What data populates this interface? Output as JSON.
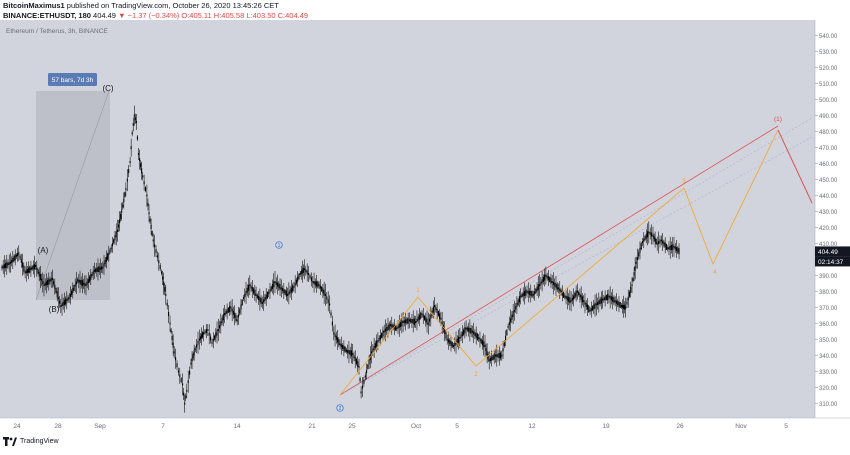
{
  "header": {
    "author": "BitcoinMaximus1",
    "published_text": "published on TradingView.com, October 26, 2020 13:45:26 CET",
    "symbol_line": "BINANCE:ETHUSDT, 180",
    "last": "404.49",
    "change": "▼ −1.37 (−0.34%)",
    "o": "O:405.11",
    "h": "H:405.58",
    "l": "L:403.50",
    "c": "C:404.49"
  },
  "chart_data": {
    "type": "candlestick",
    "title": "Ethereum / Tetherus, 3h, BINANCE",
    "ylim": [
      300,
      550
    ],
    "y_ticks": [
      310,
      320,
      330,
      340,
      350,
      360,
      370,
      380,
      390,
      400,
      410,
      420,
      430,
      440,
      450,
      460,
      470,
      480,
      490,
      500,
      510,
      520,
      530,
      540,
      550
    ],
    "y_tick_labels": [
      "310.00",
      "320.00",
      "330.00",
      "340.00",
      "350.00",
      "360.00",
      "370.00",
      "380.00",
      "390.00",
      "",
      "410.00",
      "420.00",
      "430.00",
      "440.00",
      "450.00",
      "460.00",
      "470.00",
      "480.00",
      "490.00",
      "500.00",
      "510.00",
      "520.00",
      "530.00",
      "540.00",
      "550.00"
    ],
    "x_tick_labels": [
      "24",
      "28",
      "Sep",
      "7",
      "14",
      "21",
      "25",
      "Oct",
      "5",
      "12",
      "19",
      "26",
      "Nov",
      "5"
    ],
    "last_price_label": "404.49",
    "countdown_label": "02:14:37",
    "price_path": [
      [
        0,
        395
      ],
      [
        4,
        398
      ],
      [
        8,
        404
      ],
      [
        11,
        392
      ],
      [
        16,
        396
      ],
      [
        20,
        384
      ],
      [
        24,
        388
      ],
      [
        28,
        371
      ],
      [
        32,
        376
      ],
      [
        36,
        387
      ],
      [
        40,
        384
      ],
      [
        44,
        393
      ],
      [
        48,
        395
      ],
      [
        52,
        407
      ],
      [
        55,
        418
      ],
      [
        57,
        430
      ],
      [
        59,
        444
      ],
      [
        61,
        461
      ],
      [
        62,
        479
      ],
      [
        63,
        490
      ],
      [
        64,
        486
      ],
      [
        65,
        466
      ],
      [
        67,
        452
      ],
      [
        69,
        440
      ],
      [
        70,
        429
      ],
      [
        72,
        412
      ],
      [
        74,
        402
      ],
      [
        76,
        392
      ],
      [
        78,
        378
      ],
      [
        80,
        360
      ],
      [
        82,
        342
      ],
      [
        84,
        330
      ],
      [
        86,
        322
      ],
      [
        87,
        310
      ],
      [
        88,
        318
      ],
      [
        90,
        335
      ],
      [
        92,
        344
      ],
      [
        94,
        350
      ],
      [
        96,
        354
      ],
      [
        98,
        356
      ],
      [
        100,
        348
      ],
      [
        103,
        356
      ],
      [
        106,
        366
      ],
      [
        109,
        370
      ],
      [
        112,
        362
      ],
      [
        115,
        376
      ],
      [
        118,
        384
      ],
      [
        121,
        378
      ],
      [
        124,
        373
      ],
      [
        127,
        379
      ],
      [
        130,
        386
      ],
      [
        133,
        382
      ],
      [
        136,
        378
      ],
      [
        139,
        383
      ],
      [
        142,
        391
      ],
      [
        144,
        394
      ],
      [
        146,
        391
      ],
      [
        148,
        386
      ],
      [
        151,
        384
      ],
      [
        154,
        378
      ],
      [
        156,
        372
      ],
      [
        158,
        354
      ],
      [
        161,
        347
      ],
      [
        164,
        343
      ],
      [
        167,
        341
      ],
      [
        170,
        333
      ],
      [
        171,
        317
      ],
      [
        173,
        327
      ],
      [
        176,
        342
      ],
      [
        179,
        349
      ],
      [
        182,
        355
      ],
      [
        185,
        359
      ],
      [
        188,
        357
      ],
      [
        191,
        361
      ],
      [
        194,
        362
      ],
      [
        197,
        361
      ],
      [
        200,
        366
      ],
      [
        203,
        360
      ],
      [
        206,
        371
      ],
      [
        209,
        363
      ],
      [
        212,
        350
      ],
      [
        215,
        346
      ],
      [
        218,
        351
      ],
      [
        221,
        357
      ],
      [
        224,
        355
      ],
      [
        227,
        351
      ],
      [
        230,
        346
      ],
      [
        232,
        337
      ],
      [
        235,
        340
      ],
      [
        238,
        340
      ],
      [
        241,
        358
      ],
      [
        244,
        368
      ],
      [
        247,
        377
      ],
      [
        250,
        380
      ],
      [
        253,
        378
      ],
      [
        256,
        384
      ],
      [
        259,
        390
      ],
      [
        262,
        386
      ],
      [
        265,
        382
      ],
      [
        268,
        377
      ],
      [
        271,
        374
      ],
      [
        274,
        380
      ],
      [
        277,
        374
      ],
      [
        280,
        368
      ],
      [
        283,
        372
      ],
      [
        286,
        375
      ],
      [
        289,
        377
      ],
      [
        292,
        374
      ],
      [
        295,
        371
      ],
      [
        297,
        370
      ],
      [
        300,
        384
      ],
      [
        302,
        398
      ],
      [
        305,
        411
      ],
      [
        308,
        417
      ],
      [
        310,
        415
      ],
      [
        312,
        410
      ],
      [
        314,
        412
      ],
      [
        317,
        407
      ],
      [
        320,
        408
      ],
      [
        323,
        404.5
      ]
    ],
    "ohlc_tail": {
      "o": 405.11,
      "h": 405.58,
      "l": 403.5,
      "c": 404.49
    },
    "annotations": {
      "box_label": "57 bars, 7d 3h",
      "wave_labels": [
        "(A)",
        "(B)",
        "(C)"
      ],
      "count_1": "1",
      "count_2": "2",
      "count_3": "3",
      "count_4": "4",
      "target_label": "(1)"
    }
  },
  "footer": {
    "logo_text": "TradingView"
  },
  "colors": {
    "plot_bg": "#d1d4dc",
    "candle": "#000000",
    "orange": "#f5a623",
    "red": "#e04a4a",
    "blue": "#2f6fd6",
    "box": "#b6b9c3",
    "box_label_bg": "#5b7bb5"
  }
}
